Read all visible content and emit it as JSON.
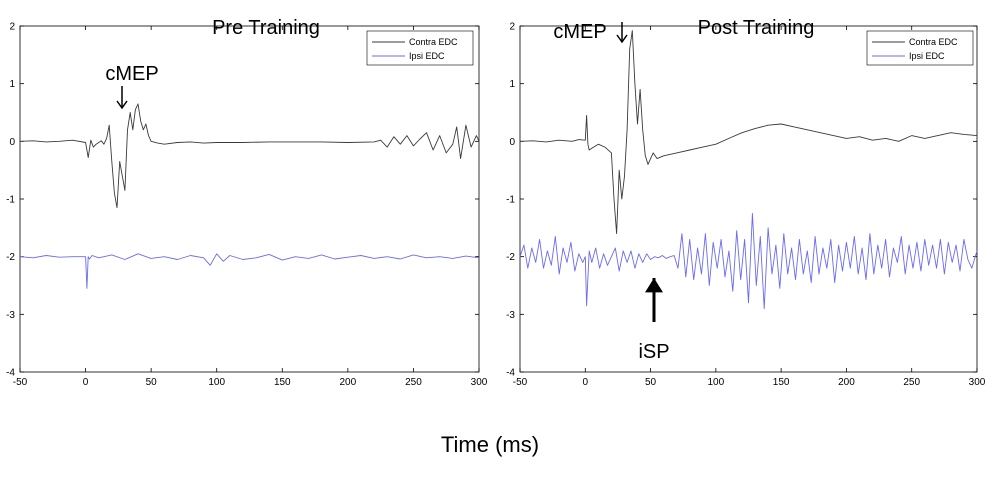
{
  "xlabel": "Time (ms)",
  "legend_entries": [
    "Contra EDC",
    "Ipsi EDC"
  ],
  "colors": {
    "contra": "#3a3a3a",
    "ipsi": "#6b6bf0",
    "axes": "#000000"
  },
  "chart_data": [
    {
      "type": "line",
      "title": "Pre Training",
      "xlim": [
        -50,
        300
      ],
      "ylim": [
        -4,
        2
      ],
      "xticks": [
        -50,
        0,
        50,
        100,
        150,
        200,
        250,
        300
      ],
      "yticks": [
        2,
        1,
        0,
        -1,
        -2,
        -3,
        -4
      ],
      "legend": "top-right",
      "grid": false,
      "annotations": [
        {
          "text": "cMEP",
          "x": 28,
          "y": 0.5
        }
      ],
      "series": [
        {
          "name": "Contra EDC",
          "color": "contra",
          "x": [
            -50,
            -40,
            -30,
            -20,
            -10,
            0,
            2,
            4,
            6,
            8,
            10,
            12,
            14,
            16,
            18,
            20,
            22,
            24,
            26,
            28,
            30,
            32,
            34,
            36,
            38,
            40,
            42,
            44,
            46,
            48,
            50,
            55,
            60,
            70,
            80,
            90,
            100,
            120,
            140,
            160,
            180,
            200,
            220,
            225,
            230,
            235,
            240,
            245,
            250,
            255,
            260,
            265,
            270,
            275,
            280,
            283,
            286,
            290,
            294,
            298,
            300
          ],
          "y": [
            0,
            0.01,
            -0.01,
            0,
            0.02,
            -0.02,
            -0.28,
            0.02,
            -0.1,
            -0.05,
            -0.02,
            0.01,
            -0.05,
            0.05,
            0.28,
            -0.35,
            -0.9,
            -1.15,
            -0.35,
            -0.6,
            -0.85,
            0.2,
            0.5,
            0.2,
            0.55,
            0.65,
            0.35,
            0.2,
            0.3,
            0.1,
            0.0,
            -0.03,
            -0.05,
            -0.02,
            -0.01,
            -0.03,
            -0.02,
            -0.02,
            -0.01,
            -0.01,
            -0.01,
            -0.02,
            -0.01,
            0.02,
            -0.1,
            0.08,
            -0.05,
            0.1,
            -0.08,
            0.04,
            0.15,
            -0.15,
            0.1,
            -0.2,
            -0.05,
            0.25,
            -0.3,
            0.28,
            -0.1,
            0.1,
            0.0
          ]
        },
        {
          "name": "Ipsi EDC",
          "color": "ipsi",
          "x": [
            -50,
            -40,
            -30,
            -20,
            -10,
            0,
            1,
            2,
            3,
            5,
            10,
            20,
            30,
            40,
            50,
            60,
            70,
            80,
            90,
            95,
            100,
            105,
            110,
            120,
            130,
            140,
            150,
            160,
            170,
            180,
            190,
            200,
            210,
            220,
            230,
            240,
            250,
            260,
            270,
            280,
            290,
            300
          ],
          "y": [
            -2,
            -2.02,
            -1.98,
            -2.01,
            -2.0,
            -2.0,
            -2.55,
            -2.0,
            -2.04,
            -1.98,
            -2.02,
            -1.97,
            -2.05,
            -1.95,
            -2.03,
            -2.0,
            -2.05,
            -1.98,
            -2.02,
            -2.15,
            -1.95,
            -2.08,
            -1.98,
            -2.05,
            -2.02,
            -1.96,
            -2.06,
            -2.0,
            -2.03,
            -1.97,
            -2.04,
            -2.01,
            -1.98,
            -2.03,
            -2.0,
            -2.04,
            -1.97,
            -2.02,
            -2.0,
            -2.03,
            -1.99,
            -2.02
          ]
        }
      ]
    },
    {
      "type": "line",
      "title": "Post Training",
      "xlim": [
        -50,
        300
      ],
      "ylim": [
        -4,
        2
      ],
      "xticks": [
        -50,
        0,
        50,
        100,
        150,
        200,
        250,
        300
      ],
      "yticks": [
        2,
        1,
        0,
        -1,
        -2,
        -3,
        -4
      ],
      "legend": "top-right",
      "grid": false,
      "annotations": [
        {
          "text": "cMEP",
          "x": 22,
          "y": 1.85
        },
        {
          "text": "iSP",
          "x": 53,
          "y": -3.6
        }
      ],
      "series": [
        {
          "name": "Contra EDC",
          "color": "contra",
          "x": [
            -50,
            -40,
            -30,
            -20,
            -10,
            -5,
            0,
            1,
            2,
            3,
            5,
            10,
            15,
            20,
            22,
            24,
            26,
            28,
            30,
            32,
            34,
            36,
            38,
            40,
            42,
            44,
            46,
            48,
            50,
            52,
            55,
            60,
            70,
            80,
            90,
            100,
            110,
            120,
            130,
            140,
            150,
            160,
            170,
            180,
            190,
            200,
            210,
            220,
            230,
            240,
            250,
            260,
            270,
            280,
            290,
            300
          ],
          "y": [
            0,
            0.01,
            -0.01,
            0.02,
            0.0,
            0.03,
            0.02,
            0.45,
            -0.05,
            -0.15,
            -0.12,
            -0.05,
            -0.1,
            -0.2,
            -1.0,
            -1.6,
            -0.5,
            -1.0,
            -0.6,
            0.2,
            1.6,
            1.92,
            1.0,
            0.3,
            0.9,
            0.2,
            -0.25,
            -0.4,
            -0.3,
            -0.2,
            -0.3,
            -0.25,
            -0.2,
            -0.15,
            -0.1,
            -0.05,
            0.05,
            0.15,
            0.22,
            0.28,
            0.3,
            0.25,
            0.2,
            0.15,
            0.1,
            0.05,
            0.08,
            0.02,
            0.05,
            0.0,
            0.1,
            0.05,
            0.1,
            0.15,
            0.12,
            0.1
          ]
        },
        {
          "name": "Ipsi EDC",
          "color": "ipsi",
          "x": [
            -50,
            -47,
            -44,
            -41,
            -38,
            -35,
            -32,
            -29,
            -26,
            -23,
            -20,
            -17,
            -14,
            -11,
            -8,
            -5,
            -2,
            0,
            1,
            3,
            5,
            8,
            11,
            14,
            17,
            20,
            23,
            26,
            29,
            32,
            35,
            38,
            41,
            44,
            47,
            50,
            53,
            56,
            59,
            62,
            65,
            68,
            71,
            74,
            77,
            80,
            83,
            86,
            89,
            92,
            95,
            98,
            101,
            104,
            107,
            110,
            113,
            116,
            119,
            122,
            125,
            128,
            131,
            134,
            137,
            140,
            143,
            146,
            149,
            152,
            155,
            158,
            161,
            164,
            167,
            170,
            173,
            176,
            179,
            182,
            185,
            188,
            191,
            194,
            197,
            200,
            203,
            206,
            209,
            212,
            215,
            218,
            221,
            224,
            227,
            230,
            233,
            236,
            239,
            242,
            245,
            248,
            251,
            254,
            257,
            260,
            263,
            266,
            269,
            272,
            275,
            278,
            281,
            284,
            287,
            290,
            293,
            296,
            300
          ],
          "y": [
            -2.0,
            -1.8,
            -2.2,
            -1.85,
            -2.1,
            -1.7,
            -2.2,
            -1.9,
            -2.15,
            -1.65,
            -2.3,
            -1.85,
            -2.1,
            -1.75,
            -2.25,
            -1.95,
            -2.1,
            -2.0,
            -2.85,
            -1.9,
            -2.1,
            -1.85,
            -2.2,
            -1.95,
            -2.15,
            -2.0,
            -1.85,
            -2.25,
            -1.9,
            -2.1,
            -1.9,
            -2.2,
            -1.95,
            -2.1,
            -1.95,
            -2.05,
            -2.0,
            -2.02,
            -1.98,
            -2.03,
            -2.0,
            -1.98,
            -2.2,
            -1.6,
            -2.35,
            -1.7,
            -2.4,
            -1.85,
            -2.3,
            -1.6,
            -2.5,
            -1.75,
            -2.2,
            -1.7,
            -2.35,
            -1.9,
            -2.6,
            -1.55,
            -2.4,
            -1.7,
            -2.8,
            -1.25,
            -2.5,
            -1.65,
            -2.9,
            -1.5,
            -2.3,
            -1.8,
            -2.55,
            -1.6,
            -2.3,
            -1.85,
            -2.4,
            -1.7,
            -2.3,
            -1.9,
            -2.45,
            -1.65,
            -2.3,
            -1.85,
            -2.2,
            -1.7,
            -2.45,
            -1.8,
            -2.25,
            -1.75,
            -2.2,
            -1.65,
            -2.3,
            -1.85,
            -2.4,
            -1.6,
            -2.3,
            -1.8,
            -2.2,
            -1.7,
            -2.35,
            -1.85,
            -2.1,
            -1.65,
            -2.3,
            -1.8,
            -2.2,
            -1.75,
            -2.25,
            -1.7,
            -2.15,
            -1.8,
            -2.2,
            -1.7,
            -2.3,
            -1.75,
            -2.1,
            -1.8,
            -2.25,
            -1.7,
            -2.05,
            -2.2,
            -1.9
          ]
        }
      ]
    }
  ]
}
